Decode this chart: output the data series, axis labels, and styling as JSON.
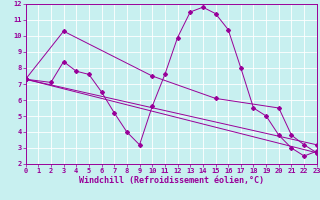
{
  "xlabel": "Windchill (Refroidissement éolien,°C)",
  "bg_color": "#c8f0f0",
  "grid_color": "#ffffff",
  "line_color": "#990099",
  "xmin": 0,
  "xmax": 23,
  "ymin": 2,
  "ymax": 12,
  "line1_x": [
    0,
    2,
    3,
    4,
    5,
    6,
    7,
    8,
    9,
    10,
    11,
    12,
    13,
    14,
    15,
    16,
    17,
    18,
    19,
    20,
    21,
    22,
    23
  ],
  "line1_y": [
    7.3,
    7.1,
    8.4,
    7.8,
    7.6,
    6.5,
    5.2,
    4.0,
    3.2,
    5.6,
    7.6,
    9.9,
    11.5,
    11.8,
    11.4,
    10.4,
    8.0,
    5.5,
    5.0,
    3.8,
    3.0,
    2.5,
    2.8
  ],
  "line2_x": [
    0,
    3,
    10,
    15,
    20,
    21,
    22,
    23
  ],
  "line2_y": [
    7.3,
    10.3,
    7.5,
    6.1,
    5.5,
    3.8,
    3.2,
    2.7
  ],
  "line3_x": [
    0,
    23
  ],
  "line3_y": [
    7.3,
    2.7
  ],
  "line4_x": [
    0,
    23
  ],
  "line4_y": [
    7.3,
    3.2
  ],
  "tick_fontsize": 5,
  "xlabel_fontsize": 6,
  "marker_size": 2,
  "line_width": 0.7
}
